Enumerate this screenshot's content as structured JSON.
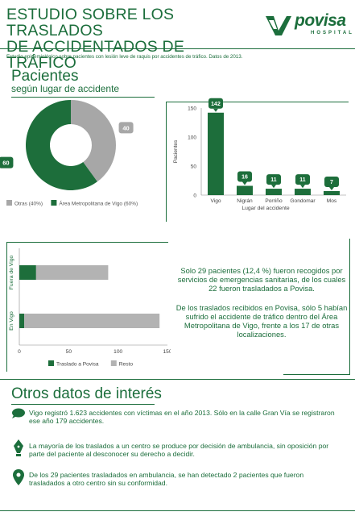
{
  "header": {
    "title_line1": "ESTUDIO SOBRE LOS TRASLADOS",
    "title_line2": "DE ACCIDENTADOS DE TRÁFICO",
    "logo_word": "povisa",
    "logo_sub": "HOSPITAL",
    "subtitle": "Estudio epidemiológico sobre pacientes con lesión leve de raquis por accidentes de tráfico. Datos de 2013."
  },
  "section1": {
    "title": "Pacientes",
    "subtitle": "según lugar de accidente"
  },
  "chart_data": [
    {
      "type": "pie",
      "variant": "donut",
      "series": [
        {
          "name": "Otras (40%)",
          "value": 40,
          "label": "40",
          "color": "#a7a7a7"
        },
        {
          "name": "Área Metropolitana de Vigo (60%)",
          "value": 60,
          "label": "60",
          "color": "#1d6e3b"
        }
      ],
      "legend_position": "bottom"
    },
    {
      "type": "bar",
      "categories": [
        "Vigo",
        "Nigrán",
        "Porriño",
        "Gondomar",
        "Mos"
      ],
      "values": [
        142,
        16,
        11,
        11,
        7
      ],
      "ylabel": "Pacientes",
      "xlabel": "Lugar del accidente",
      "ylim": [
        0,
        150
      ],
      "yticks": [
        "0",
        "50",
        "100",
        "150"
      ],
      "color": "#1d6e3b"
    },
    {
      "type": "bar",
      "orientation": "horizontal",
      "stacked": true,
      "categories": [
        "Fuera de Vigo",
        "En Vigo"
      ],
      "series": [
        {
          "name": "Traslado a Povisa",
          "values": [
            17,
            5
          ],
          "color": "#1d6e3b"
        },
        {
          "name": "Resto",
          "values": [
            73,
            137
          ],
          "color": "#b3b3b3"
        }
      ],
      "xlim": [
        0,
        150
      ],
      "xticks": [
        "0",
        "50",
        "100",
        "150"
      ],
      "legend_position": "bottom"
    }
  ],
  "text_block": {
    "p1": "Solo 29 pacientes (12,4 %) fueron recogidos por servicios de emergencias sanitarias, de los cuales 22 fueron trasladados a Povisa.",
    "p2": "De los traslados recibidos en Povisa, sólo 5 habían sufrido el accidente de tráfico dentro del Área Metropolitana de Vigo, frente a los 17 de otras localizaciones."
  },
  "section2": {
    "title": "Otros datos de interés",
    "facts": [
      {
        "icon": "speech-bubble-icon",
        "text": "Vigo registró 1.623 accidentes con víctimas en el año 2013. Sólo en la calle Gran Vía se registraron ese año 179 accidentes."
      },
      {
        "icon": "pen-nib-icon",
        "text": "La mayoría de los traslados a un centro se produce por decisión de ambulancia, sin oposición por parte del paciente al desconocer su derecho a decidir."
      },
      {
        "icon": "map-pin-icon",
        "text": "De los 29 pacientes trasladados en ambulancia, se han detectado 2 pacientes que fueron trasladados a otro centro sin su conformidad."
      }
    ]
  },
  "colors": {
    "brand_green": "#1c6e3c",
    "grey": "#a7a7a7"
  }
}
